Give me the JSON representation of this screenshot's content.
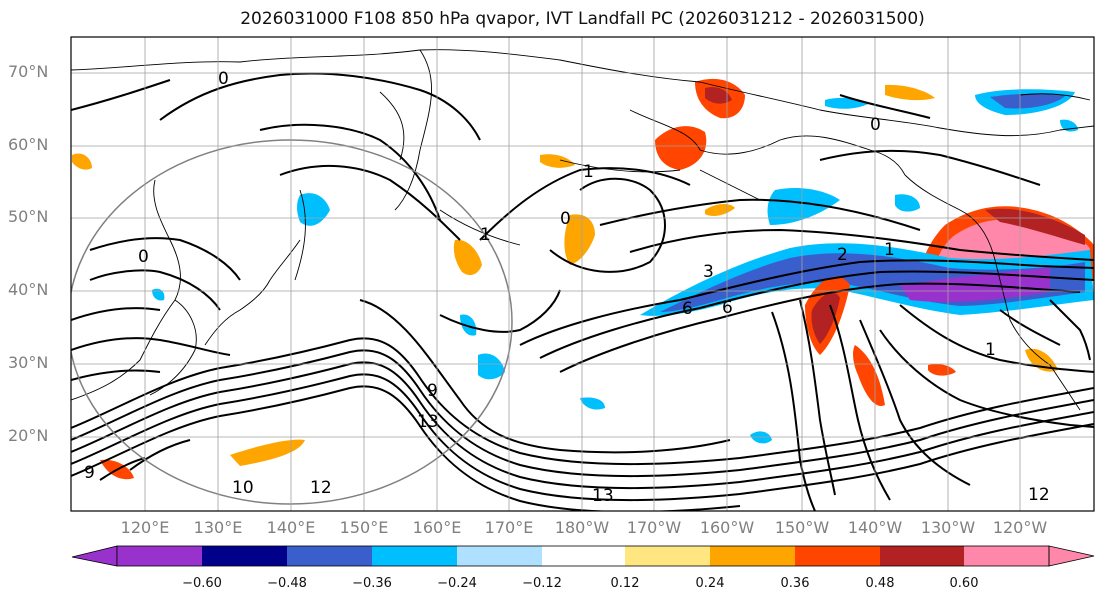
{
  "title": "2026031000 F108 850 hPa qvapor, IVT Landfall PC (2026031212 - 2026031500)",
  "lat_labels": [
    "70°N",
    "60°N",
    "50°N",
    "40°N",
    "30°N",
    "20°N"
  ],
  "lon_labels": [
    "120°E",
    "130°E",
    "140°E",
    "150°E",
    "160°E",
    "170°E",
    "180°W",
    "170°W",
    "160°W",
    "150°W",
    "140°W",
    "130°W",
    "120°W"
  ],
  "contour_labels": [
    "0",
    "0",
    "1",
    "1",
    "0",
    "3",
    "6",
    "6",
    "9",
    "13",
    "13",
    "12",
    "12",
    "10",
    "9",
    "1",
    "2",
    "1",
    "0"
  ],
  "colorbar": {
    "colors": [
      "#9932cc",
      "#00008b",
      "#3a5fcd",
      "#00bfff",
      "#b0e0ff",
      "#ffffff",
      "#ffe680",
      "#ffa500",
      "#ff4500",
      "#b22222",
      "#ff88aa"
    ],
    "ticks": [
      "−0.60",
      "−0.48",
      "−0.36",
      "−0.24",
      "−0.12",
      "0.12",
      "0.24",
      "0.36",
      "0.48",
      "0.60"
    ]
  }
}
